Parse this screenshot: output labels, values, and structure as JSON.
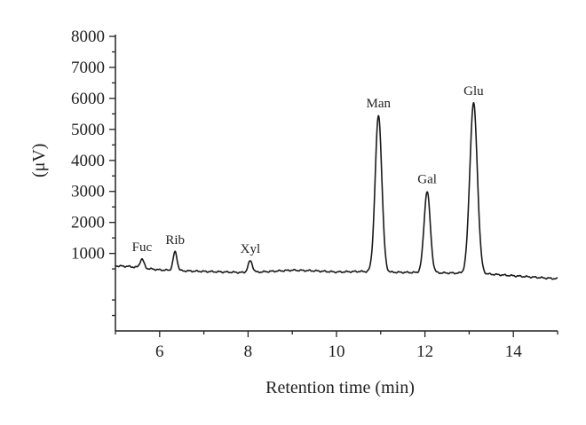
{
  "chart_data": {
    "type": "line",
    "title": "",
    "xlabel": "Retention time (min)",
    "ylabel": "(μV)",
    "xlim": [
      5,
      15
    ],
    "ylim": [
      -1500,
      8000
    ],
    "x_ticks": [
      6,
      8,
      10,
      12,
      14
    ],
    "y_ticks": [
      1000,
      2000,
      3000,
      4000,
      5000,
      6000,
      7000,
      8000
    ],
    "grid": false,
    "legend": "none",
    "baseline": [
      [
        5.0,
        600
      ],
      [
        5.3,
        580
      ],
      [
        5.6,
        530
      ],
      [
        6.0,
        470
      ],
      [
        6.5,
        440
      ],
      [
        7.0,
        420
      ],
      [
        7.5,
        400
      ],
      [
        8.0,
        380
      ],
      [
        8.5,
        420
      ],
      [
        9.0,
        460
      ],
      [
        9.5,
        440
      ],
      [
        10.0,
        400
      ],
      [
        10.5,
        420
      ],
      [
        11.0,
        400
      ],
      [
        11.5,
        390
      ],
      [
        12.0,
        380
      ],
      [
        12.5,
        370
      ],
      [
        13.0,
        360
      ],
      [
        13.5,
        330
      ],
      [
        14.0,
        280
      ],
      [
        14.5,
        230
      ],
      [
        15.0,
        180
      ]
    ],
    "peaks": [
      {
        "label": "Fuc",
        "x": 5.6,
        "y": 820,
        "width": 0.045
      },
      {
        "label": "Rib",
        "x": 6.35,
        "y": 1050,
        "width": 0.045
      },
      {
        "label": "Xyl",
        "x": 8.05,
        "y": 760,
        "width": 0.05
      },
      {
        "label": "Man",
        "x": 10.95,
        "y": 5450,
        "width": 0.075
      },
      {
        "label": "Gal",
        "x": 12.05,
        "y": 3000,
        "width": 0.07
      },
      {
        "label": "Glu",
        "x": 13.1,
        "y": 5850,
        "width": 0.085
      }
    ]
  }
}
